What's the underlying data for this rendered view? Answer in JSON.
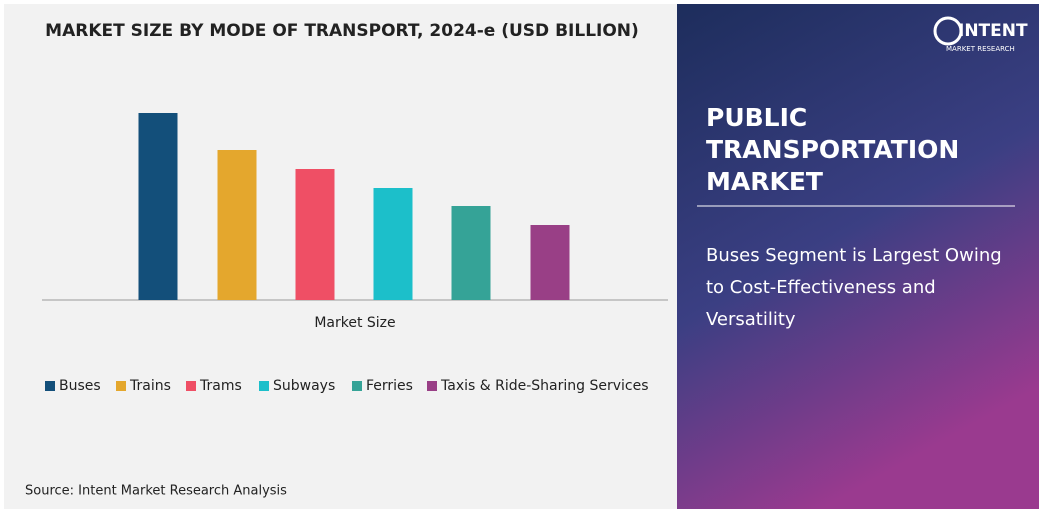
{
  "chart_data": {
    "type": "bar",
    "title": "MARKET SIZE BY MODE OF TRANSPORT, 2024-e (USD BILLION)",
    "categories": [
      "Market Size"
    ],
    "series": [
      {
        "name": "Buses",
        "color": "#134f7a",
        "values": [
          187
        ]
      },
      {
        "name": "Trains",
        "color": "#e4a72d",
        "values": [
          150
        ]
      },
      {
        "name": "Trams",
        "color": "#ef4f65",
        "values": [
          131
        ]
      },
      {
        "name": "Subways",
        "color": "#1cbfca",
        "values": [
          112
        ]
      },
      {
        "name": "Ferries",
        "color": "#35a397",
        "values": [
          94
        ]
      },
      {
        "name": "Taxis & Ride-Sharing Services",
        "color": "#993f86",
        "values": [
          75
        ]
      }
    ]
  },
  "source": "Source: Intent Market Research Analysis",
  "panel": {
    "title": "PUBLIC TRANSPORTATION MARKET",
    "subtitle": "Buses Segment is Largest Owing to Cost-Effectiveness and Versatility"
  },
  "logo": {
    "name": "INTENT",
    "tagline": "MARKET RESEARCH"
  }
}
